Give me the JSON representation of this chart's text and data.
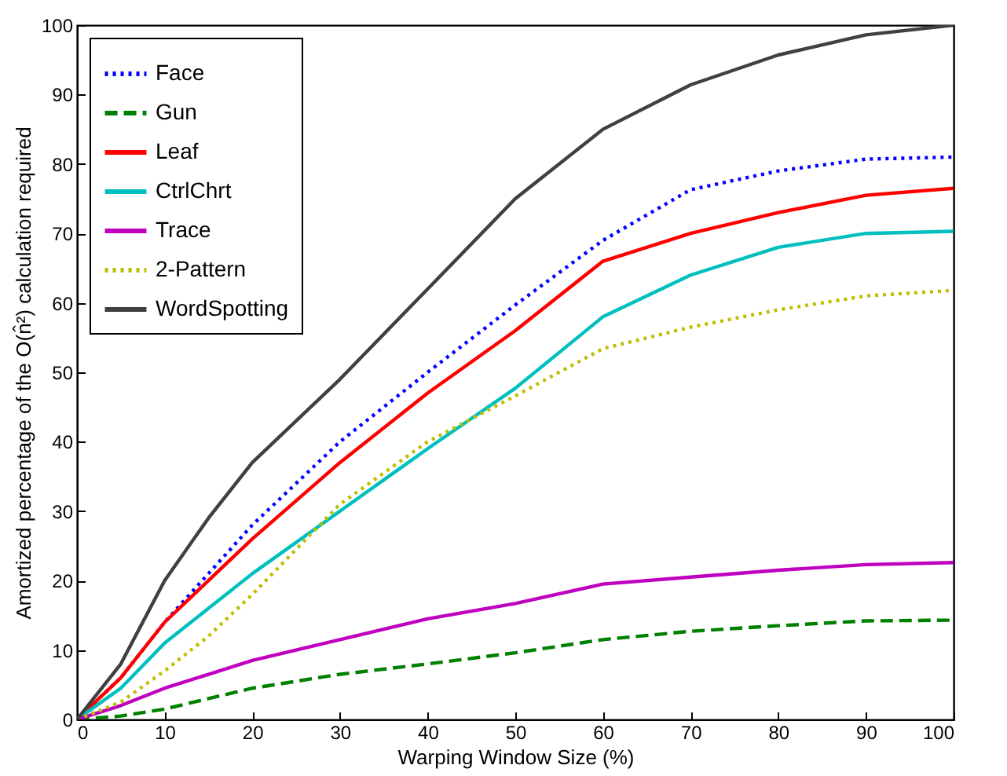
{
  "chart_data": {
    "type": "line",
    "xlabel": "Warping Window Size (%)",
    "ylabel": "Amortized percentage of the O(n̂²) calculation required",
    "x": [
      0,
      5,
      10,
      15,
      20,
      30,
      40,
      50,
      60,
      70,
      80,
      90,
      100
    ],
    "xlim": [
      0,
      100
    ],
    "ylim": [
      0,
      100
    ],
    "xticks": [
      0,
      10,
      20,
      30,
      40,
      50,
      60,
      70,
      80,
      90,
      100
    ],
    "yticks": [
      0,
      10,
      20,
      30,
      40,
      50,
      60,
      70,
      80,
      90,
      100
    ],
    "grid": false,
    "legend": "top left",
    "marker": "none",
    "series": [
      {
        "name": "Face",
        "color": "#0000ff",
        "line_style": "dotted",
        "values": [
          0,
          6,
          14,
          21,
          28,
          40,
          50,
          59.7,
          69,
          76.3,
          79,
          80.7,
          81
        ]
      },
      {
        "name": "Gun",
        "color": "#008000",
        "line_style": "dashed",
        "values": [
          0,
          0.5,
          1.5,
          3,
          4.5,
          6.5,
          8,
          9.6,
          11.5,
          12.7,
          13.5,
          14.2,
          14.3
        ]
      },
      {
        "name": "Leaf",
        "color": "#ff0000",
        "line_style": "solid",
        "values": [
          0,
          6,
          14,
          20,
          26,
          37,
          47,
          56,
          66,
          70,
          73,
          75.5,
          76.5
        ]
      },
      {
        "name": "CtrlChrt",
        "color": "#00bfbf",
        "line_style": "solid",
        "values": [
          0,
          4.5,
          11,
          16,
          21,
          30,
          39,
          47.7,
          58,
          64,
          68,
          70,
          70.3
        ]
      },
      {
        "name": "Trace",
        "color": "#bf00bf",
        "line_style": "solid",
        "values": [
          0,
          2,
          4.5,
          6.5,
          8.5,
          11.5,
          14.5,
          16.7,
          19.5,
          20.5,
          21.5,
          22.3,
          22.6
        ]
      },
      {
        "name": "2-Pattern",
        "color": "#bfbf00",
        "line_style": "dotted",
        "values": [
          0,
          2.5,
          7,
          12,
          18,
          31,
          40,
          46.6,
          53.4,
          56.5,
          59,
          61,
          61.8
        ]
      },
      {
        "name": "WordSpotting",
        "color": "#404040",
        "line_style": "solid",
        "values": [
          0,
          8,
          20,
          29,
          37,
          49,
          62,
          75,
          85,
          91.4,
          95.7,
          98.6,
          100
        ]
      }
    ]
  }
}
